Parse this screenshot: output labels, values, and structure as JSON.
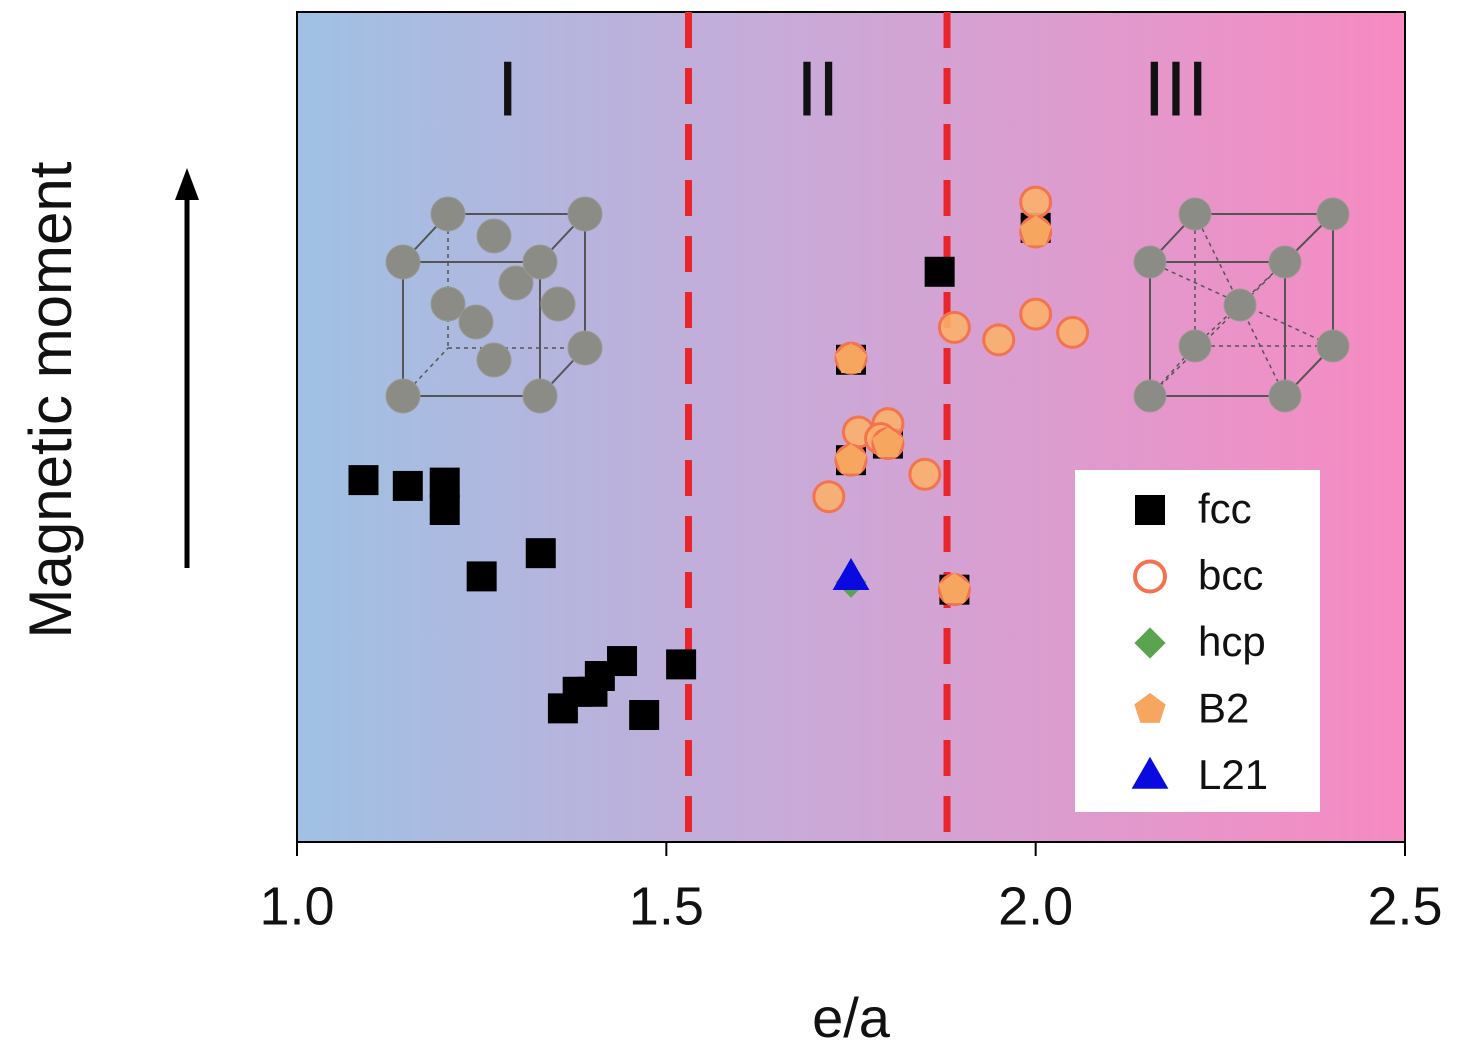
{
  "chart_data": {
    "type": "scatter",
    "xlabel": "e/a",
    "ylabel": "Magnetic moment",
    "xlim": [
      1.0,
      2.5
    ],
    "ylim": [
      0,
      100
    ],
    "xticks": [
      {
        "value": 1.0,
        "label": "1.0"
      },
      1.5,
      {
        "value": 2.0,
        "label": "2.0"
      },
      2.5
    ],
    "boundaries": [
      1.53,
      1.88
    ],
    "boundary_color": "#e8252b",
    "region_labels": [
      "I",
      "II",
      "III"
    ],
    "legend": "lower right",
    "series": [
      {
        "name": "fcc",
        "marker": "square",
        "color": "#000000",
        "x": [
          1.09,
          1.15,
          1.2,
          1.2,
          1.25,
          1.33,
          1.36,
          1.38,
          1.4,
          1.41,
          1.44,
          1.47,
          1.52,
          1.87,
          1.75,
          1.75,
          1.8,
          1.89,
          2.0
        ],
        "values": [
          43.6,
          42.9,
          43.3,
          40.0,
          32.0,
          34.8,
          16.1,
          18.1,
          18.1,
          20.0,
          21.8,
          15.3,
          21.4,
          68.7,
          58.1,
          46.0,
          48.0,
          30.4,
          74.0
        ]
      },
      {
        "name": "bcc",
        "marker": "circle",
        "color": "#f4734f",
        "x": [
          2.0,
          2.0,
          1.89,
          1.95,
          2.0,
          2.05,
          1.75,
          1.76,
          1.8,
          1.79,
          1.75,
          1.85,
          1.72,
          1.89,
          1.8
        ],
        "values": [
          77.1,
          73.5,
          62.0,
          60.5,
          63.6,
          61.4,
          58.3,
          49.4,
          50.4,
          48.6,
          46.0,
          44.3,
          41.6,
          30.4,
          48.0
        ]
      },
      {
        "name": "hcp",
        "marker": "diamond",
        "color": "#5aa34f",
        "x": [
          1.75
        ],
        "values": [
          31.3
        ]
      },
      {
        "name": "B2",
        "marker": "pentagon",
        "color": "#f6a65f",
        "x": [
          1.75,
          1.75,
          1.8,
          1.89,
          2.0
        ],
        "values": [
          58.1,
          46.0,
          48.0,
          30.4,
          73.5
        ]
      },
      {
        "name": "L21",
        "marker": "triangle",
        "color": "#0a0ae0",
        "x": [
          1.75
        ],
        "values": [
          31.9
        ]
      }
    ]
  }
}
